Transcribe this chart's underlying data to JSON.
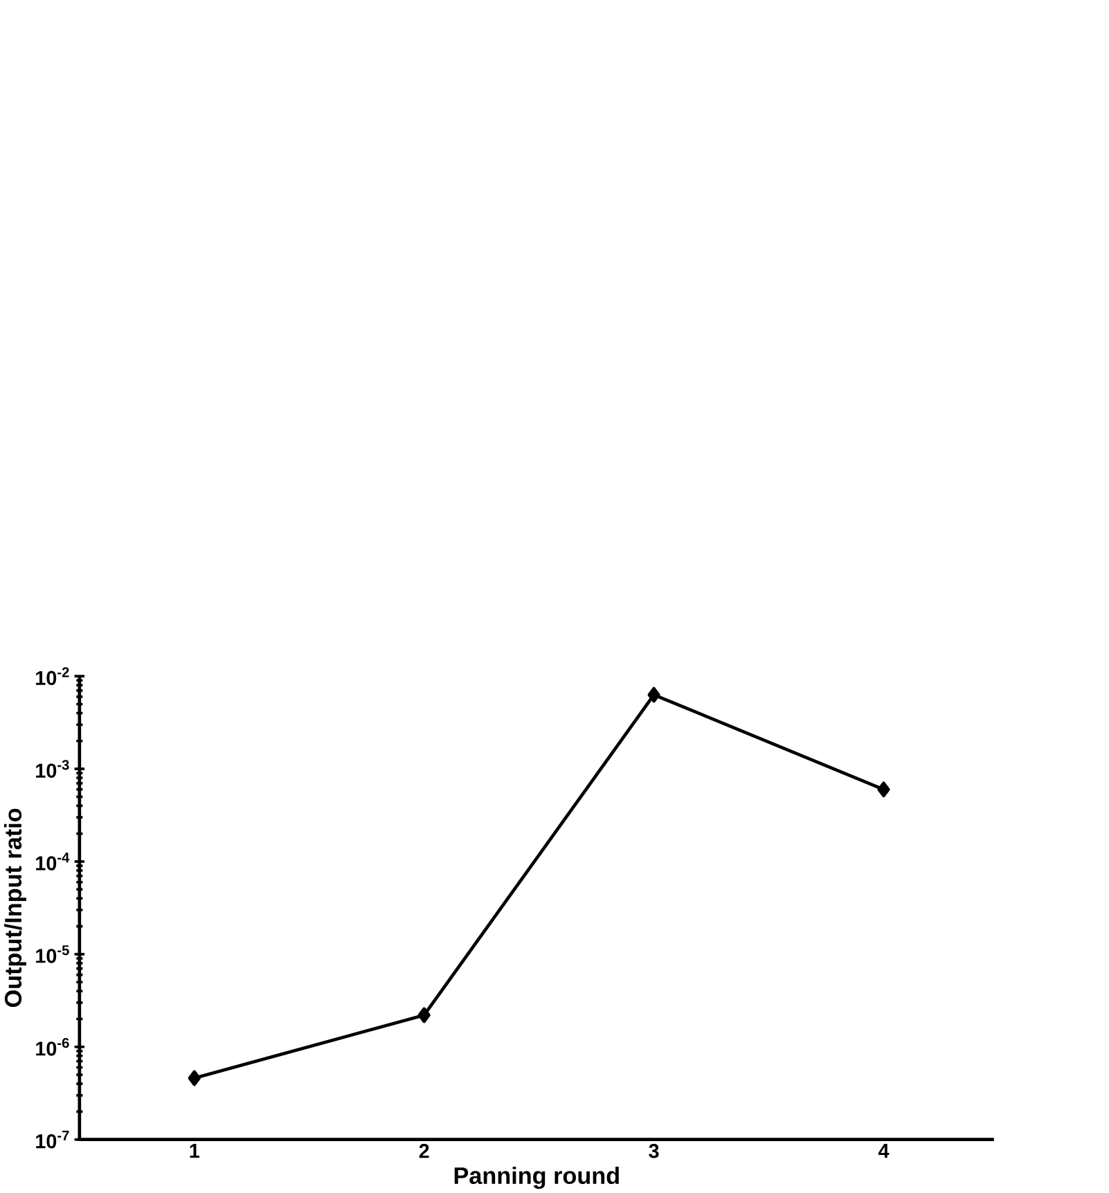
{
  "chart_data": {
    "type": "line",
    "xlabel": "Panning round",
    "ylabel": "Output/Input ratio",
    "categories": [
      "1",
      "2",
      "3",
      "4"
    ],
    "series": [
      {
        "color": "#000000",
        "values": [
          4.6e-07,
          2.2e-06,
          0.0063,
          0.0006
        ]
      }
    ],
    "log": "y",
    "ylim": [
      1e-07,
      0.01
    ],
    "yticks": [
      {
        "value": 1e-07,
        "label": "10$^{-7}$"
      },
      {
        "value": 1e-06,
        "label": "10$^{-6}$"
      },
      {
        "value": 1e-05,
        "label": "10$^{-5}$"
      },
      {
        "value": 0.0001,
        "label": "10$^{-4}$"
      },
      {
        "value": 0.001,
        "label": "10$^{-3}$"
      },
      {
        "value": 0.01,
        "label": "10$^{-2}$"
      }
    ],
    "grid": false,
    "marker": "diamond",
    "line_style": "solid"
  }
}
